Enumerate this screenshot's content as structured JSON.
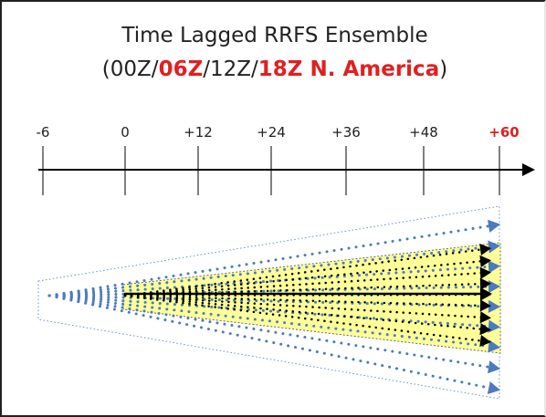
{
  "title": {
    "line1": "Time Lagged RRFS Ensemble",
    "line2_open": "(",
    "line2_seg1": "00Z/",
    "line2_seg2": "06Z",
    "line2_seg3": "/12Z/",
    "line2_seg4": "18Z N. America",
    "line2_close": ")"
  },
  "timeline": {
    "ticks": [
      "-6",
      "0",
      "+12",
      "+24",
      "+36",
      "+48",
      "+60"
    ],
    "highlight_tick": "+60"
  },
  "colors": {
    "highlight": "#e02020",
    "ensemble_fill": "#ffff99",
    "member_arrow": "#4a7bbf",
    "control_arrow": "#000000"
  }
}
